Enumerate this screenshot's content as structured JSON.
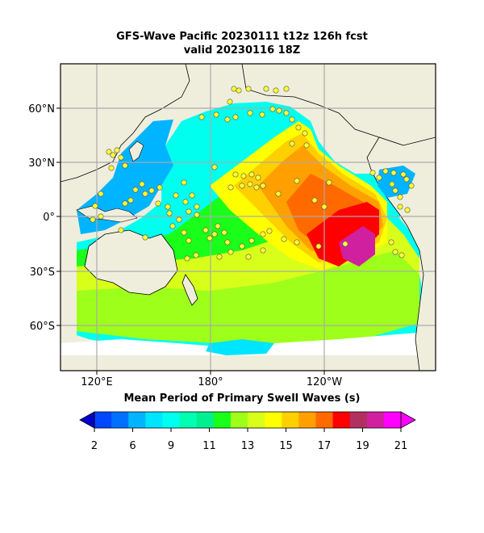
{
  "title_line1": "GFS-Wave Pacific 20230111 t12z 126h fcst",
  "title_line2": "valid 20230116 18Z",
  "colorbar_label": "Mean Period of Primary Swell Waves (s)",
  "lat_labels": [
    "60°N",
    "30°N",
    "0°",
    "30°S",
    "60°S"
  ],
  "lon_labels": [
    "120°E",
    "180°",
    "120°W"
  ],
  "colorbar_ticks": [
    "2",
    "6",
    "9",
    "11",
    "13",
    "15",
    "17",
    "19",
    "21"
  ],
  "colorbar_colors": [
    "#0047ff",
    "#0070ff",
    "#00b4ff",
    "#00e5ff",
    "#00ffee",
    "#00ffb0",
    "#00f090",
    "#1aff1a",
    "#9eff1a",
    "#d8ff1a",
    "#ffff00",
    "#ffd000",
    "#ffa000",
    "#ff6a00",
    "#ff0000",
    "#b03060",
    "#d020a0",
    "#ff00ff"
  ],
  "land_color": "#efeedd",
  "missing_color": "#ffffff",
  "buoy_color": "#ffff33"
}
